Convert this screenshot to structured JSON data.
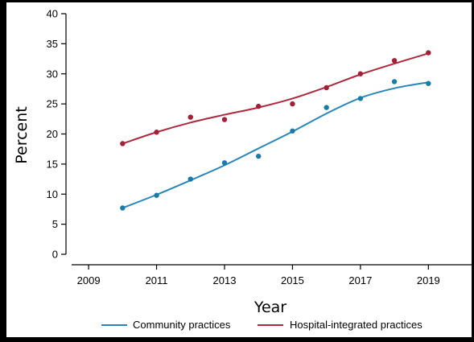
{
  "chart_data": {
    "type": "scatter",
    "title": "",
    "xlabel": "Year",
    "ylabel": "Percent",
    "xlim": [
      2008.5,
      2020.2
    ],
    "ylim": [
      0,
      40
    ],
    "x_ticks": [
      "2009",
      "2011",
      "2013",
      "2015",
      "2017",
      "2019"
    ],
    "y_ticks": [
      "0",
      "5",
      "10",
      "15",
      "20",
      "25",
      "30",
      "35",
      "40"
    ],
    "grid": false,
    "legend_position": "bottom",
    "series": [
      {
        "name": "Community practices",
        "color": "#2a86b8",
        "marker_color": "#1a7ca6",
        "points": [
          {
            "x": 2010,
            "y": 7.7
          },
          {
            "x": 2011,
            "y": 9.8
          },
          {
            "x": 2012,
            "y": 12.5
          },
          {
            "x": 2013,
            "y": 15.2
          },
          {
            "x": 2014,
            "y": 16.3
          },
          {
            "x": 2015,
            "y": 20.5
          },
          {
            "x": 2016,
            "y": 24.4
          },
          {
            "x": 2017,
            "y": 25.9
          },
          {
            "x": 2018,
            "y": 28.7
          },
          {
            "x": 2019,
            "y": 28.4
          }
        ],
        "fit": [
          {
            "x": 2010,
            "y": 7.7
          },
          {
            "x": 2011,
            "y": 9.9
          },
          {
            "x": 2012,
            "y": 12.3
          },
          {
            "x": 2013,
            "y": 14.8
          },
          {
            "x": 2014,
            "y": 17.6
          },
          {
            "x": 2015,
            "y": 20.4
          },
          {
            "x": 2016,
            "y": 23.4
          },
          {
            "x": 2017,
            "y": 26.0
          },
          {
            "x": 2018,
            "y": 27.6
          },
          {
            "x": 2019,
            "y": 28.6
          }
        ]
      },
      {
        "name": "Hospital-integrated practices",
        "color": "#ad2a3e",
        "marker_color": "#a21f35",
        "points": [
          {
            "x": 2010,
            "y": 18.4
          },
          {
            "x": 2011,
            "y": 20.3
          },
          {
            "x": 2012,
            "y": 22.8
          },
          {
            "x": 2013,
            "y": 22.4
          },
          {
            "x": 2014,
            "y": 24.6
          },
          {
            "x": 2015,
            "y": 25.0
          },
          {
            "x": 2016,
            "y": 27.7
          },
          {
            "x": 2017,
            "y": 30.0
          },
          {
            "x": 2018,
            "y": 32.2
          },
          {
            "x": 2019,
            "y": 33.5
          }
        ],
        "fit": [
          {
            "x": 2010,
            "y": 18.4
          },
          {
            "x": 2011,
            "y": 20.3
          },
          {
            "x": 2012,
            "y": 21.9
          },
          {
            "x": 2013,
            "y": 23.2
          },
          {
            "x": 2014,
            "y": 24.4
          },
          {
            "x": 2015,
            "y": 25.9
          },
          {
            "x": 2016,
            "y": 27.8
          },
          {
            "x": 2017,
            "y": 29.9
          },
          {
            "x": 2018,
            "y": 31.7
          },
          {
            "x": 2019,
            "y": 33.4
          }
        ]
      }
    ]
  }
}
